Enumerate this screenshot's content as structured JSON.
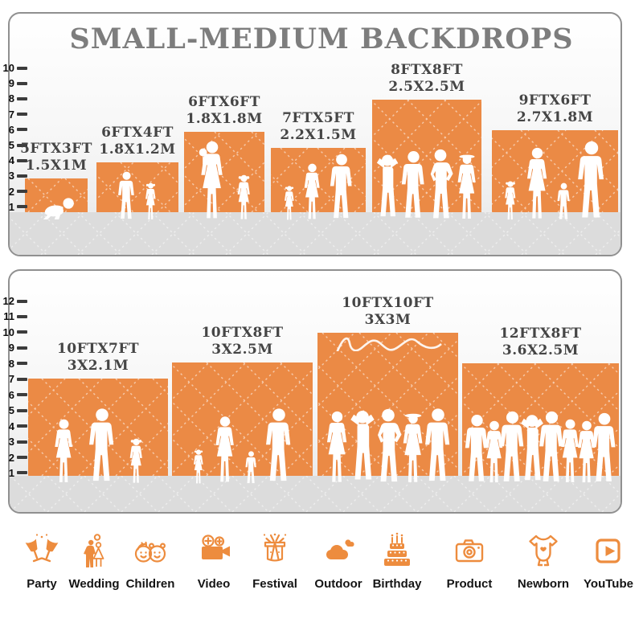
{
  "title": "SMALL-MEDIUM BACKDROPS",
  "colors": {
    "orange": "#EB8A45",
    "icon_orange": "#ED8C3E",
    "label_gray": "#454545",
    "title_gray": "#7D7D7D"
  },
  "panels": [
    {
      "name": "small-medium-size-chart",
      "ruler": [
        "10",
        "9",
        "8",
        "7",
        "6",
        "5",
        "4",
        "3",
        "2",
        "1"
      ],
      "backdrops": [
        {
          "size_ft": "5FTX3FT",
          "size_m": "1.5X1M",
          "figures": [
            "crawling-baby"
          ]
        },
        {
          "size_ft": "6FTX4FT",
          "size_m": "1.8X1.2M",
          "figures": [
            "boy",
            "girl"
          ]
        },
        {
          "size_ft": "6FTX6FT",
          "size_m": "1.8X1.8M",
          "figures": [
            "woman-holding-baby",
            "girl"
          ]
        },
        {
          "size_ft": "7FTX5FT",
          "size_m": "2.2X1.5M",
          "figures": [
            "girl",
            "woman",
            "man"
          ]
        },
        {
          "size_ft": "8FTX8FT",
          "size_m": "2.5X2.5M",
          "figures": [
            "man-pose",
            "man",
            "man-hips",
            "woman-hat"
          ]
        },
        {
          "size_ft": "9FTX6FT",
          "size_m": "2.7X1.8M",
          "figures": [
            "girl",
            "woman",
            "child",
            "man"
          ]
        }
      ]
    },
    {
      "name": "medium-large-size-chart",
      "ruler": [
        "12",
        "11",
        "10",
        "9",
        "8",
        "7",
        "6",
        "5",
        "4",
        "3",
        "2",
        "1"
      ],
      "backdrops": [
        {
          "size_ft": "10FTX7FT",
          "size_m": "3X2.1M",
          "figures": [
            "woman",
            "man",
            "girl"
          ]
        },
        {
          "size_ft": "10FTX8FT",
          "size_m": "3X2.5M",
          "figures": [
            "girl",
            "woman",
            "child",
            "man"
          ]
        },
        {
          "size_ft": "10FTX10FT",
          "size_m": "3X3M",
          "figures": [
            "woman",
            "man-pose",
            "man-hips",
            "woman-hat",
            "man"
          ]
        },
        {
          "size_ft": "12FTX8FT",
          "size_m": "3.6X2.5M",
          "figures": [
            "man",
            "woman",
            "man",
            "man-pose",
            "man",
            "woman",
            "woman",
            "man"
          ]
        }
      ]
    }
  ],
  "categories": [
    {
      "label": "Party",
      "icon": "party-icon"
    },
    {
      "label": "Wedding",
      "icon": "wedding-icon"
    },
    {
      "label": "Children",
      "icon": "children-icon"
    },
    {
      "label": "Video",
      "icon": "video-icon"
    },
    {
      "label": "Festival",
      "icon": "festival-icon"
    },
    {
      "label": "Outdoor",
      "icon": "outdoor-icon"
    },
    {
      "label": "Birthday",
      "icon": "birthday-icon"
    },
    {
      "label": "Product",
      "icon": "product-icon"
    },
    {
      "label": "Newborn",
      "icon": "newborn-icon"
    },
    {
      "label": "YouTube",
      "icon": "youtube-icon"
    }
  ]
}
